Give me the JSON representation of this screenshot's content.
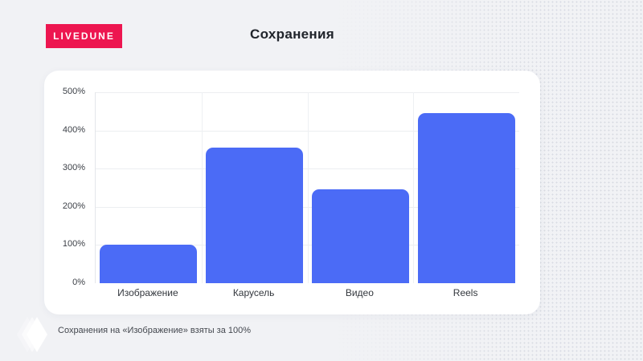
{
  "page": {
    "background_color": "#f1f2f5"
  },
  "header": {
    "brand_badge": "LIVEDUNE",
    "brand_badge_color": "#ed1650",
    "title": "Сохранения"
  },
  "chart_data": {
    "type": "bar",
    "title": "Сохранения",
    "categories": [
      "Изображение",
      "Карусель",
      "Видео",
      "Reels"
    ],
    "values": [
      100,
      355,
      245,
      445
    ],
    "unit": "%",
    "ylim": [
      0,
      500
    ],
    "yticks": [
      "0%",
      "100%",
      "200%",
      "300%",
      "400%",
      "500%"
    ],
    "bar_color": "#4b6bf6",
    "grid": true,
    "legend": false,
    "note": "Изображение = базовый уровень 100%"
  },
  "footer": {
    "caption": "Сохранения на «Изображение» взяты за 100%"
  },
  "icons": {
    "logo_diamond": "livedune-diamond-icon"
  }
}
